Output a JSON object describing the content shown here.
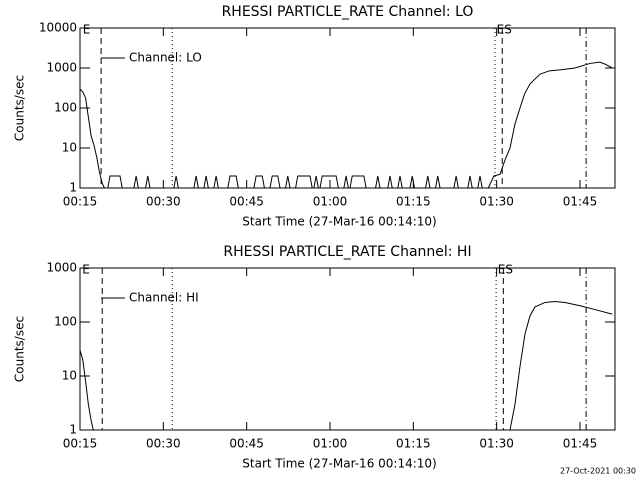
{
  "chart_data": [
    {
      "type": "line",
      "title": "RHESSI PARTICLE_RATE Channel: LO",
      "xlabel": "Start Time (27-Mar-16 00:14:10)",
      "ylabel": "Counts/sec",
      "log_y": true,
      "legend": "upper left",
      "xlim": [
        15,
        111.3
      ],
      "ylim": [
        1,
        10000
      ],
      "xticks": [
        {
          "value": 15,
          "label": "00:15"
        },
        {
          "value": 30,
          "label": "00:30"
        },
        {
          "value": 45,
          "label": "00:45"
        },
        {
          "value": 60,
          "label": "01:00"
        },
        {
          "value": 75,
          "label": "01:15"
        },
        {
          "value": 90,
          "label": "01:30"
        },
        {
          "value": 105,
          "label": "01:45"
        }
      ],
      "yticks": [
        1,
        10,
        100,
        1000,
        10000
      ],
      "vlines": [
        {
          "x": 18.8,
          "style": "dashed"
        },
        {
          "x": 31.6,
          "style": "dotted"
        },
        {
          "x": 89.7,
          "style": "dotted"
        },
        {
          "x": 91.0,
          "style": "dashed"
        },
        {
          "x": 106.1,
          "style": "dashdot"
        }
      ],
      "annotations": [
        {
          "text": "E",
          "x": 15.5
        },
        {
          "text": "ES",
          "x": 90.0
        }
      ],
      "series": [
        {
          "name": "Channel: LO",
          "color": "#000000",
          "x": [
            15,
            15.5,
            16,
            16.5,
            17,
            17.5,
            18,
            18.5,
            19,
            19.4,
            20,
            20.4,
            22.2,
            22.6,
            24.7,
            25.1,
            25.5,
            26.8,
            27.2,
            27.6,
            31.9,
            32.3,
            32.7,
            35.5,
            35.9,
            36.3,
            37.3,
            37.7,
            38.1,
            39.1,
            39.5,
            39.9,
            41.6,
            42.0,
            43.1,
            43.5,
            46.3,
            46.7,
            47.8,
            48.2,
            49.2,
            49.6,
            50.6,
            51.0,
            52.0,
            52.4,
            52.8,
            53.8,
            54.2,
            56.4,
            56.8,
            57.1,
            57.5,
            57.9,
            58.2,
            58.6,
            61.1,
            61.5,
            62.5,
            62.9,
            63.3,
            63.6,
            64.0,
            66.1,
            66.5,
            68.2,
            68.6,
            69.0,
            70.4,
            70.8,
            71.2,
            72.2,
            72.6,
            73.0,
            74.4,
            74.8,
            75.2,
            77.2,
            77.6,
            78.0,
            79.0,
            79.4,
            79.8,
            82.3,
            82.7,
            83.1,
            84.8,
            85.2,
            85.6,
            86.6,
            87.0,
            87.4,
            88.5,
            89.5,
            90.6,
            91.5,
            92.4,
            93.3,
            94.2,
            95,
            96,
            97.8,
            99.5,
            101.4,
            104.1,
            106.8,
            108.6,
            109.5,
            110.8
          ],
          "values": [
            300,
            250,
            180,
            60,
            20,
            12,
            6,
            2.5,
            1.3,
            1,
            1,
            2,
            2,
            1,
            1,
            2,
            1,
            1,
            2,
            1,
            1,
            2,
            1,
            1,
            2,
            1,
            1,
            2,
            1,
            1,
            2,
            1,
            1,
            2,
            2,
            1,
            1,
            2,
            2,
            1,
            1,
            2,
            2,
            1,
            1,
            2,
            1,
            1,
            2,
            2,
            1,
            1,
            2,
            1,
            1,
            2,
            2,
            1,
            1,
            2,
            1,
            1,
            2,
            2,
            1,
            1,
            2,
            1,
            1,
            2,
            1,
            1,
            2,
            1,
            1,
            2,
            1,
            1,
            2,
            1,
            1,
            2,
            1,
            1,
            2,
            1,
            1,
            2,
            1,
            1,
            2,
            1,
            1,
            2,
            2.2,
            5,
            10,
            40,
            100,
            220,
            400,
            700,
            850,
            900,
            1000,
            1300,
            1400,
            1250,
            1000
          ]
        }
      ]
    },
    {
      "type": "line",
      "title": "RHESSI PARTICLE_RATE Channel: HI",
      "xlabel": "Start Time (27-Mar-16 00:14:10)",
      "ylabel": "Counts/sec",
      "log_y": true,
      "legend": "upper left",
      "xlim": [
        15,
        111.3
      ],
      "ylim": [
        1,
        1000
      ],
      "xticks": [
        {
          "value": 15,
          "label": "00:15"
        },
        {
          "value": 30,
          "label": "00:30"
        },
        {
          "value": 45,
          "label": "00:45"
        },
        {
          "value": 60,
          "label": "01:00"
        },
        {
          "value": 75,
          "label": "01:15"
        },
        {
          "value": 90,
          "label": "01:30"
        },
        {
          "value": 105,
          "label": "01:45"
        }
      ],
      "yticks": [
        1,
        10,
        100,
        1000
      ],
      "vlines": [
        {
          "x": 19.0,
          "style": "dashed"
        },
        {
          "x": 31.6,
          "style": "dotted"
        },
        {
          "x": 89.9,
          "style": "dotted"
        },
        {
          "x": 91.2,
          "style": "dashed"
        },
        {
          "x": 106.1,
          "style": "dashdot"
        }
      ],
      "annotations": [
        {
          "text": "E",
          "x": 15.4
        },
        {
          "text": "ES",
          "x": 90.2
        }
      ],
      "series": [
        {
          "name": "Channel: HI",
          "color": "#000000",
          "x": [
            15,
            15.5,
            16,
            16.5,
            17,
            17.4,
            50,
            92.4,
            93.3,
            94.2,
            95.1,
            96,
            96.9,
            98.7,
            100.5,
            102.3,
            105,
            107.7,
            110.8
          ],
          "values": [
            30,
            20,
            8,
            3,
            1.5,
            1,
            null,
            1,
            3,
            15,
            60,
            130,
            190,
            230,
            240,
            230,
            200,
            170,
            140
          ]
        }
      ]
    }
  ],
  "footer": "27-Oct-2021 00:30"
}
